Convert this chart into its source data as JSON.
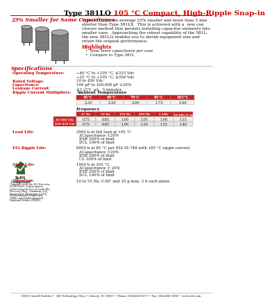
{
  "title_black": "Type 381LQ",
  "title_red": " 105 °C Compact, High-Ripple Snap-in",
  "subtitle": "23% Smaller for Same Capacitance",
  "bg_color": "#ffffff",
  "red_color": "#cc0000",
  "body_text_color": "#222222",
  "description": "Type 381LQ is on average 23% smaller and more than 5 mm\nshorter than Type 381LX.  This is achieved with a  new can\nclosure method that permits installing capacitor elements into\nsmaller cans.  Approaching the robust capability of the 381L,\nthe new 381LQ enables you to shrink equipment size and\nretain the original performance.",
  "highlights_title": "Highlights",
  "highlights": [
    "New, more capacitance per case",
    "Compare to Type 381L"
  ],
  "specs_title": "Specifications",
  "spec_labels": [
    "Operating Temperature:",
    "Rated Voltage:",
    "Capacitance:",
    "Leakage Current:",
    "Ripple Current Multipliers:"
  ],
  "spec_values": [
    "−40 °C to +105 °C, ≤315 Vdc\n−25 °C to +105 °C, ≥350 Vdc",
    "10 to 450 Vdc",
    "100 µF to 100,000 µF ±20%",
    "≤3 √CV  µA,  5 minutes",
    "Ambient Temperature"
  ],
  "ambient_headers": [
    "45°C",
    "60°C",
    "70°C",
    "85°C",
    "105°C"
  ],
  "ambient_values": [
    "2.35",
    "2.20",
    "2.00",
    "1.75",
    "1.00"
  ],
  "freq_header": "Frequency",
  "freq_cols": [
    "25 Hz",
    "50 Hz",
    "120 Hz",
    "400 Hz",
    "1 kHz",
    "10 kHz & up"
  ],
  "freq_rows": [
    "10-100 Vdc",
    "160-450 Vdc"
  ],
  "freq_data": [
    [
      "0.75",
      "0.85",
      "1.00",
      "1.05",
      "1.08",
      "1.15"
    ],
    [
      "0.75",
      "0.85",
      "1.00",
      "1.20",
      "1.25",
      "1.40"
    ]
  ],
  "load_life_label": "Load Life:",
  "load_life_values": [
    "2000 h at full load at 105 °C",
    "ΔCapacitance ±20%",
    "ESR 200% of limit",
    "DCL 100% of limit"
  ],
  "eia_label": "EIA Ripple Life:",
  "eia_values": [
    "8000 h at 85 °C per EIA IS-749 with 105 °C ripple current.",
    "ΔCapacitance ±20%",
    "ESR 200% of limit",
    "CL 100% of limit"
  ],
  "shelf_label": "Shelf Life:",
  "shelf_values": [
    "1000 h at 105 °C,",
    "ΔCapacitance ± 20%",
    "ESR 200% of limit",
    "DCL 100% of limit"
  ],
  "vib_label": "Vibration:",
  "vib_value": "10 to 55 Hz, 0.06\" and 10 g max, 2 h each plane",
  "footer": "CDE4 Cornell Dubilier • 140 Technology Place • Liberty, SC 29657 • Phone: (864)843-2277 • Fax: (864)843-3800 • www.cde.com",
  "rohs_text": "RoHS\nCompliant",
  "rohs_note": "Complies with the EU Directive\n2002/95/EC requirements\nrestricting the use of Lead (Pb),\nMercury (Hg), Cadmium (Cd),\nHexavalent chromium (CrVI),\nPolybrominated Biphenyls\n(PBB) and Polybrominated\nDiphenyl Ethers (PBDE)."
}
